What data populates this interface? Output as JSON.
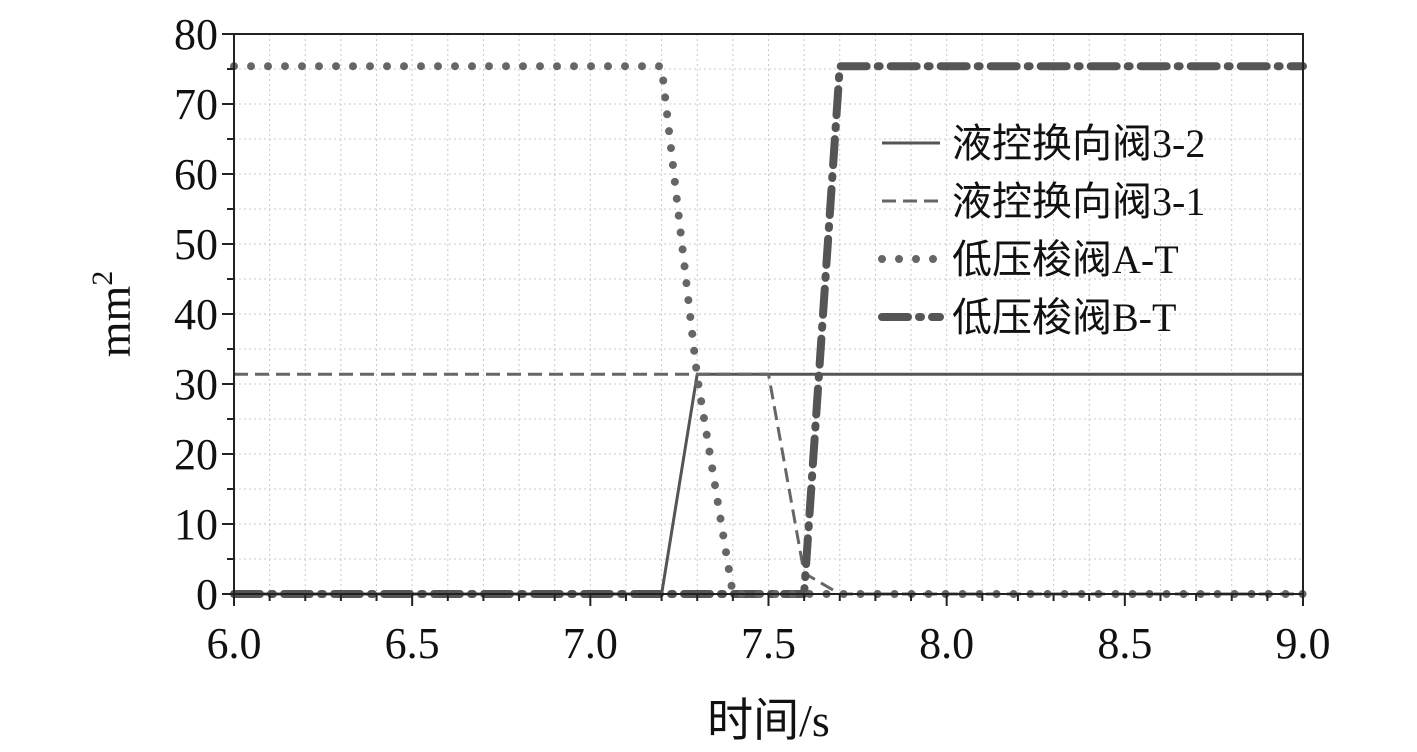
{
  "chart_data": {
    "type": "line",
    "title": "",
    "xlabel": "时间/s",
    "ylabel": "mm",
    "ylabel_superscript": "2",
    "xlim": [
      6.0,
      9.0
    ],
    "ylim": [
      0,
      80
    ],
    "x_ticks": [
      "6.0",
      "6.5",
      "7.0",
      "7.5",
      "8.0",
      "8.5",
      "9.0"
    ],
    "y_ticks": [
      "0",
      "10",
      "20",
      "30",
      "40",
      "50",
      "60",
      "70",
      "80"
    ],
    "grid": true,
    "legend_position": "right",
    "series": [
      {
        "name": "液控换向阀3-2",
        "style": "solid",
        "color": "#555555",
        "points": [
          [
            6.0,
            0
          ],
          [
            7.2,
            0
          ],
          [
            7.3,
            31.4
          ],
          [
            9.0,
            31.4
          ]
        ]
      },
      {
        "name": "液控换向阀3-1",
        "style": "dashed",
        "color": "#666666",
        "points": [
          [
            6.0,
            31.4
          ],
          [
            7.5,
            31.4
          ],
          [
            7.6,
            3.0
          ],
          [
            7.7,
            0
          ],
          [
            9.0,
            0
          ]
        ]
      },
      {
        "name": "低压梭阀A-T",
        "style": "dotted",
        "color": "#666666",
        "points": [
          [
            6.0,
            75.4
          ],
          [
            7.2,
            75.4
          ],
          [
            7.3,
            31.0
          ],
          [
            7.4,
            0
          ],
          [
            9.0,
            0
          ]
        ]
      },
      {
        "name": "低压梭阀B-T",
        "style": "dashdot",
        "color": "#555555",
        "points": [
          [
            6.0,
            0
          ],
          [
            7.6,
            0
          ],
          [
            7.7,
            75.4
          ],
          [
            9.0,
            75.4
          ]
        ]
      }
    ]
  }
}
